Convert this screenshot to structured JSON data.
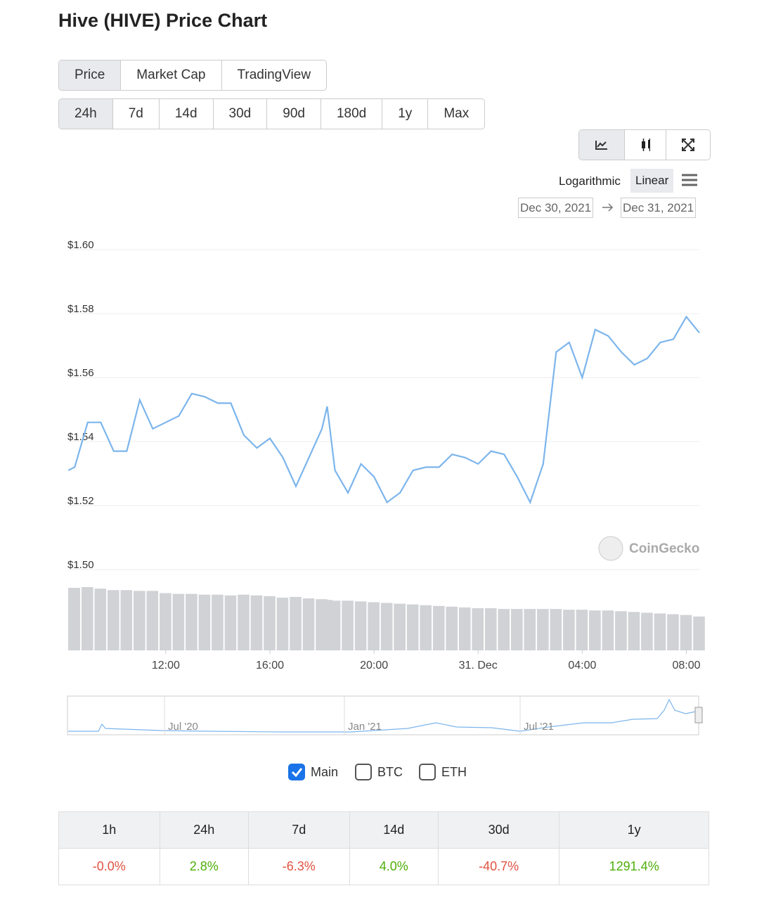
{
  "header": {
    "title": "Hive (HIVE) Price Chart"
  },
  "tabs": [
    "Price",
    "Market Cap",
    "TradingView"
  ],
  "ranges": [
    "24h",
    "7d",
    "14d",
    "30d",
    "90d",
    "180d",
    "1y",
    "Max"
  ],
  "scale_options": [
    "Logarithmic",
    "Linear"
  ],
  "date_from": "Dec 30, 2021",
  "date_to": "Dec 31, 2021",
  "watermark": "CoinGecko",
  "chart_data": {
    "type": "line",
    "color": "#7cb5ec",
    "grid": true,
    "x": [
      8.25,
      8.5,
      9,
      9.5,
      10,
      10.5,
      11,
      11.5,
      12,
      12.5,
      13,
      13.5,
      14,
      14.5,
      15,
      15.5,
      16,
      16.5,
      17,
      17.5,
      18,
      18.2,
      18.5,
      19,
      19.5,
      20,
      20.5,
      21,
      21.5,
      22,
      22.5,
      23,
      23.5,
      24,
      24.5,
      25,
      25.5,
      26,
      26.5,
      27,
      27.5,
      28,
      28.5,
      29,
      29.5,
      30,
      30.5,
      31,
      31.5,
      32,
      32.5
    ],
    "values": [
      1.531,
      1.532,
      1.546,
      1.546,
      1.537,
      1.537,
      1.553,
      1.544,
      1.546,
      1.548,
      1.555,
      1.554,
      1.552,
      1.552,
      1.542,
      1.538,
      1.541,
      1.535,
      1.526,
      1.535,
      1.544,
      1.551,
      1.531,
      1.524,
      1.533,
      1.529,
      1.521,
      1.524,
      1.531,
      1.532,
      1.532,
      1.536,
      1.535,
      1.533,
      1.537,
      1.536,
      1.529,
      1.521,
      1.533,
      1.568,
      1.571,
      1.56,
      1.575,
      1.573,
      1.568,
      1.564,
      1.566,
      1.571,
      1.572,
      1.579,
      1.574
    ],
    "volume": [
      83,
      82,
      84,
      82,
      80,
      80,
      79,
      79,
      76,
      75,
      75,
      74,
      74,
      73,
      74,
      73,
      72,
      70,
      71,
      69,
      68,
      67,
      66,
      66,
      65,
      64,
      63,
      62,
      61,
      60,
      59,
      58,
      57,
      56,
      56,
      55,
      55,
      55,
      55,
      55,
      54,
      54,
      53,
      53,
      52,
      51,
      50,
      49,
      48,
      47,
      45
    ],
    "xlim": [
      8.25,
      32.5
    ],
    "ylim": [
      1.5,
      1.6
    ],
    "yticks": [
      {
        "value": 1.5,
        "label": "$1.50"
      },
      {
        "value": 1.52,
        "label": "$1.52"
      },
      {
        "value": 1.54,
        "label": "$1.54"
      },
      {
        "value": 1.56,
        "label": "$1.56"
      },
      {
        "value": 1.58,
        "label": "$1.58"
      },
      {
        "value": 1.6,
        "label": "$1.60"
      }
    ],
    "xticks": [
      {
        "value": 12,
        "label": "12:00"
      },
      {
        "value": 16,
        "label": "16:00"
      },
      {
        "value": 20,
        "label": "20:00"
      },
      {
        "value": 24,
        "label": "31. Dec"
      },
      {
        "value": 28,
        "label": "04:00"
      },
      {
        "value": 32,
        "label": "08:00"
      }
    ]
  },
  "navigator_labels": [
    "Jul '20",
    "Jan '21",
    "Jul '21"
  ],
  "toggles": [
    {
      "label": "Main",
      "checked": true
    },
    {
      "label": "BTC",
      "checked": false
    },
    {
      "label": "ETH",
      "checked": false
    }
  ],
  "table": {
    "headers": [
      "1h",
      "24h",
      "7d",
      "14d",
      "30d",
      "1y"
    ],
    "values": [
      "-0.0%",
      "2.8%",
      "-6.3%",
      "4.0%",
      "-40.7%",
      "1291.4%"
    ]
  }
}
